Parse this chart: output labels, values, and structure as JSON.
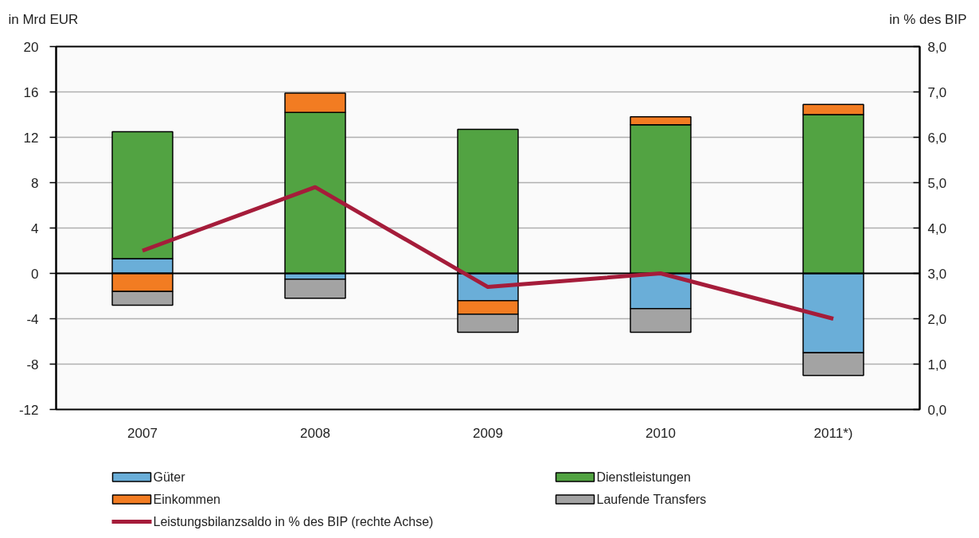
{
  "chart_data": {
    "type": "bar",
    "stacked": true,
    "ylabel": "in Mrd EUR",
    "y2label": "in % des BIP",
    "categories": [
      "2007",
      "2008",
      "2009",
      "2010",
      "2011*)"
    ],
    "series": [
      {
        "name": "Güter",
        "color": "#6aaed8",
        "values": [
          1.3,
          -0.5,
          -2.4,
          -3.1,
          -7.0
        ]
      },
      {
        "name": "Dienstleistungen",
        "color": "#52a342",
        "values": [
          11.2,
          14.2,
          12.7,
          13.1,
          14.0
        ]
      },
      {
        "name": "Einkommen",
        "color": "#f27c22",
        "values": [
          -1.6,
          1.7,
          -1.2,
          0.7,
          0.9
        ]
      },
      {
        "name": "Laufende Transfers",
        "color": "#a3a3a3",
        "values": [
          -1.2,
          -1.7,
          -1.6,
          -2.1,
          -2.0
        ]
      },
      {
        "name": "Leistungsbilanzsaldo in % des BIP (rechte Achse)",
        "type": "line",
        "axis": "y2",
        "color": "#a51c3a",
        "values": [
          3.5,
          4.9,
          2.7,
          3.0,
          2.0
        ]
      }
    ],
    "ylim": [
      -12,
      20
    ],
    "yticks": [
      -12,
      -8,
      -4,
      0,
      4,
      8,
      12,
      16,
      20
    ],
    "y2lim": [
      0,
      8
    ],
    "y2ticks": [
      {
        "value": 0,
        "label": "0,0"
      },
      {
        "value": 1,
        "label": "1,0"
      },
      {
        "value": 2,
        "label": "2,0"
      },
      {
        "value": 3,
        "label": "3,0"
      },
      {
        "value": 4,
        "label": "4,0"
      },
      {
        "value": 5,
        "label": "5,0"
      },
      {
        "value": 6,
        "label": "6,0"
      },
      {
        "value": 7,
        "label": "7,0"
      },
      {
        "value": 8,
        "label": "8,0"
      }
    ],
    "grid": "y",
    "legend": "bottom",
    "ref_lines": [
      {
        "axis": "y",
        "value": 0,
        "color": "#000000"
      }
    ]
  }
}
